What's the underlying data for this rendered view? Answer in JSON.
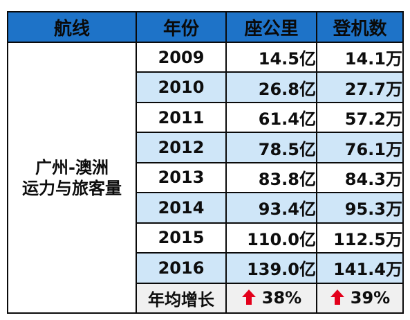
{
  "headers": {
    "route": "航线",
    "year": "年份",
    "seat_km": "座公里",
    "passengers": "登机数"
  },
  "route_label": {
    "line1": "广州-澳洲",
    "line2": "运力与旅客量"
  },
  "rows": [
    {
      "year": "2009",
      "seat_km": "14.5亿",
      "passengers": "14.1万"
    },
    {
      "year": "2010",
      "seat_km": "26.8亿",
      "passengers": "27.7万"
    },
    {
      "year": "2011",
      "seat_km": "61.4亿",
      "passengers": "57.2万"
    },
    {
      "year": "2012",
      "seat_km": "78.5亿",
      "passengers": "76.1万"
    },
    {
      "year": "2013",
      "seat_km": "83.8亿",
      "passengers": "84.3万"
    },
    {
      "year": "2014",
      "seat_km": "93.4亿",
      "passengers": "95.3万"
    },
    {
      "year": "2015",
      "seat_km": "110.0亿",
      "passengers": "112.5万"
    },
    {
      "year": "2016",
      "seat_km": "139.0亿",
      "passengers": "141.4万"
    }
  ],
  "growth": {
    "label": "年均增长",
    "seat_km": "38%",
    "passengers": "39%",
    "arrow_icon": "up-arrow-icon",
    "arrow_color": "#e3001b"
  },
  "colors": {
    "header_bg": "#1e73c8",
    "shade_row_bg": "#cfe6f8",
    "growth_row_bg": "#f0f0f0"
  }
}
